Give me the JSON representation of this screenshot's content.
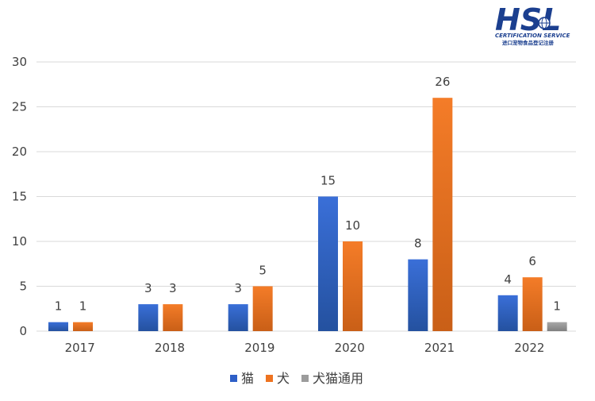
{
  "logo": {
    "brand": "HSL",
    "subtitle": "CERTIFICATION SERVICE",
    "caption_cn": "进口宠物食品登记注册"
  },
  "colors": {
    "cat": "#2e5fc7",
    "dog": "#ee7320",
    "shared": "#9c9c9c",
    "grid": "#d9d9d9",
    "text": "#404040"
  },
  "chart_data": {
    "type": "bar",
    "title": "",
    "xlabel": "",
    "ylabel": "",
    "categories": [
      "2017",
      "2018",
      "2019",
      "2020",
      "2021",
      "2022"
    ],
    "series": [
      {
        "key": "cat",
        "name": "猫",
        "values": [
          1,
          3,
          3,
          15,
          8,
          4
        ]
      },
      {
        "key": "dog",
        "name": "犬",
        "values": [
          1,
          3,
          5,
          10,
          26,
          6
        ]
      },
      {
        "key": "shared",
        "name": "犬猫通用",
        "values": [
          null,
          null,
          null,
          null,
          null,
          1
        ]
      }
    ],
    "ylim": [
      0,
      30
    ],
    "yticks": [
      0,
      5,
      10,
      15,
      20,
      25,
      30
    ],
    "grid": true,
    "legend_position": "bottom-center"
  }
}
